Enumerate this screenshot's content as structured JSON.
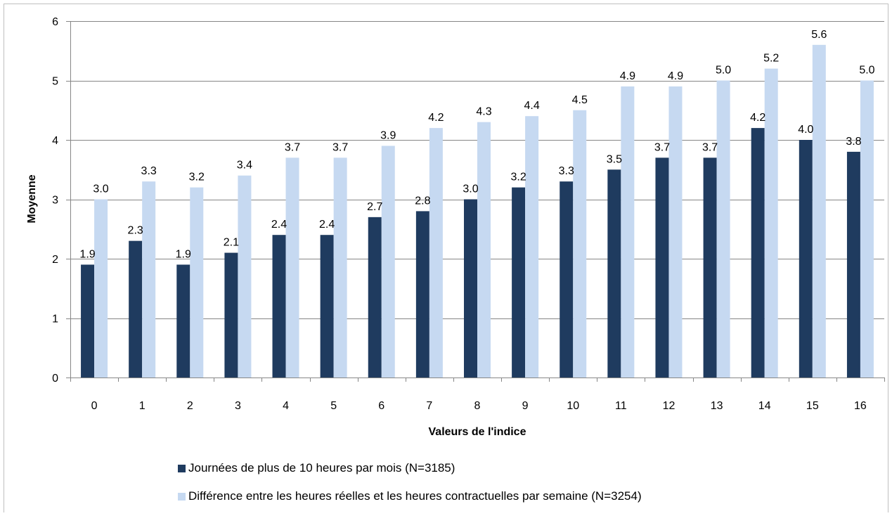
{
  "chart_data": {
    "type": "bar",
    "xlabel": "Valeurs de l'indice",
    "ylabel": "Moyenne",
    "ylim": [
      0,
      6
    ],
    "yticks": [
      0,
      1,
      2,
      3,
      4,
      5,
      6
    ],
    "categories": [
      "0",
      "1",
      "2",
      "3",
      "4",
      "5",
      "6",
      "7",
      "8",
      "9",
      "10",
      "11",
      "12",
      "13",
      "14",
      "15",
      "16"
    ],
    "series": [
      {
        "name": "Journées de plus de 10 heures par mois (N=3185)",
        "color": "#1f3b5f",
        "values": [
          1.9,
          2.3,
          1.9,
          2.1,
          2.4,
          2.4,
          2.7,
          2.8,
          3.0,
          3.2,
          3.3,
          3.5,
          3.7,
          3.7,
          4.2,
          4.0,
          3.8
        ]
      },
      {
        "name": "Différence entre les heures réelles et les heures contractuelles par semaine (N=3254)",
        "color": "#c6d9f1",
        "values": [
          3.0,
          3.3,
          3.2,
          3.4,
          3.7,
          3.7,
          3.9,
          4.2,
          4.3,
          4.4,
          4.5,
          4.9,
          4.9,
          5.0,
          5.2,
          5.6,
          5.0
        ]
      }
    ],
    "grid": true,
    "legend_position": "bottom",
    "data_labels": true
  }
}
